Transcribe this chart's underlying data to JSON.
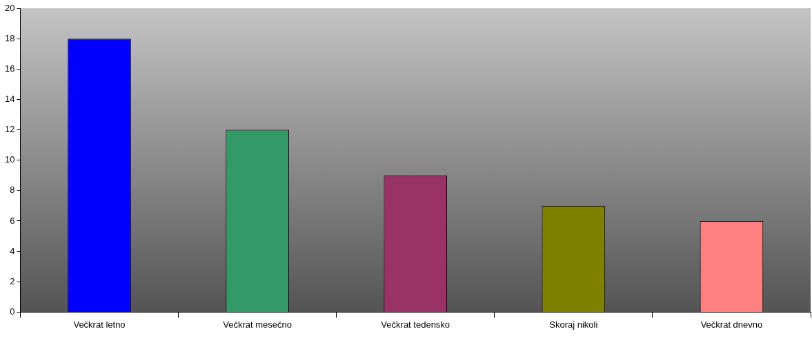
{
  "chart_data": {
    "type": "bar",
    "categories": [
      "Večkrat letno",
      "Večkrat mesečno",
      "Večkrat tedensko",
      "Skoraj nikoli",
      "Večkrat dnevno"
    ],
    "values": [
      18,
      12,
      9,
      7,
      6
    ],
    "colors": [
      "#0000ff",
      "#339966",
      "#993366",
      "#808000",
      "#ff8080"
    ],
    "ylim": [
      0,
      20
    ],
    "yticks": [
      0,
      2,
      4,
      6,
      8,
      10,
      12,
      14,
      16,
      18,
      20
    ],
    "grid": false,
    "legend": false
  }
}
